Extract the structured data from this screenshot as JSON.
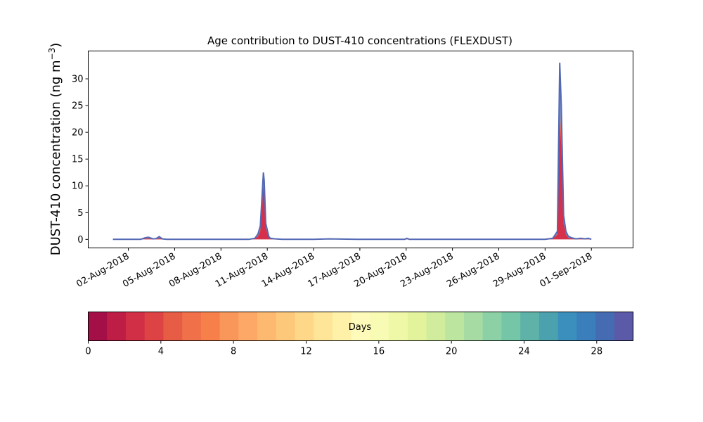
{
  "chart_data": {
    "type": "area",
    "title": "Age contribution to DUST-410 concentrations (FLEXDUST)",
    "ylabel_main": "DUST-410 concentration (ng m",
    "ylabel_sup": "−3",
    "ylabel_close": ")",
    "xlabel": "",
    "ylim": [
      -1.6,
      35.2
    ],
    "yticks": [
      0,
      5,
      10,
      15,
      20,
      25,
      30
    ],
    "xlim_day": [
      -1.6,
      33.7
    ],
    "xticks": [
      {
        "day": 1,
        "label": "02-Aug-2018"
      },
      {
        "day": 4,
        "label": "05-Aug-2018"
      },
      {
        "day": 7,
        "label": "08-Aug-2018"
      },
      {
        "day": 10,
        "label": "11-Aug-2018"
      },
      {
        "day": 13,
        "label": "14-Aug-2018"
      },
      {
        "day": 16,
        "label": "17-Aug-2018"
      },
      {
        "day": 19,
        "label": "20-Aug-2018"
      },
      {
        "day": 22,
        "label": "23-Aug-2018"
      },
      {
        "day": 25,
        "label": "26-Aug-2018"
      },
      {
        "day": 28,
        "label": "29-Aug-2018"
      },
      {
        "day": 31,
        "label": "01-Sep-2018"
      }
    ],
    "series_note_day0": "2018-08-01",
    "total": {
      "day": [
        0,
        1.8,
        2.1,
        2.3,
        2.6,
        2.8,
        3.0,
        3.2,
        3.5,
        4.0,
        6.0,
        7.0,
        8.0,
        8.8,
        9.2,
        9.4,
        9.55,
        9.6,
        9.75,
        9.8,
        9.9,
        10.1,
        10.2,
        10.5,
        11.0,
        12.0,
        13.0,
        14.0,
        16.0,
        18.0,
        18.9,
        19.05,
        19.2,
        20.0,
        22.0,
        24.0,
        26.0,
        28.0,
        28.5,
        28.8,
        28.95,
        29.05,
        29.2,
        29.35,
        29.5,
        29.7,
        30.0,
        30.3,
        30.6,
        30.8,
        31.0
      ],
      "value": [
        0,
        0,
        0.3,
        0.4,
        0.1,
        0.15,
        0.5,
        0.1,
        0,
        0,
        0,
        0,
        0,
        0,
        0.2,
        1.0,
        2.5,
        5.0,
        12.5,
        11.0,
        3.0,
        0.5,
        0.2,
        0.1,
        0,
        0,
        0,
        0.1,
        0,
        0,
        0,
        0.2,
        0,
        0,
        0,
        0,
        0,
        0,
        0.2,
        1.5,
        33.0,
        25.0,
        4.5,
        1.5,
        0.6,
        0.3,
        0.1,
        0.2,
        0.1,
        0.2,
        0
      ],
      "inner_fraction": [
        0,
        0,
        0.4,
        0.4,
        0.5,
        0.5,
        0.4,
        0.5,
        0,
        0,
        0,
        0,
        0,
        0,
        0.5,
        0.55,
        0.6,
        0.65,
        0.78,
        0.8,
        0.7,
        0.6,
        0.5,
        0.5,
        0,
        0,
        0,
        0.5,
        0,
        0,
        0,
        0.5,
        0,
        0,
        0,
        0,
        0,
        0,
        0.5,
        0.6,
        0.66,
        0.7,
        0.65,
        0.6,
        0.5,
        0.5,
        0.5,
        0.5,
        0.5,
        0.5,
        0
      ]
    },
    "colorbar": {
      "label": "Days",
      "range": [
        0,
        30
      ],
      "ticks": [
        0,
        4,
        8,
        12,
        16,
        20,
        24,
        28
      ],
      "colors": [
        "#a50f47",
        "#be1e46",
        "#d12f46",
        "#dd4245",
        "#e65c44",
        "#f07049",
        "#f7804a",
        "#f9975a",
        "#fda867",
        "#fdb96f",
        "#fec87b",
        "#fed788",
        "#fee597",
        "#fff1a8",
        "#fefbba",
        "#f8fbb3",
        "#eef8a6",
        "#e2f39c",
        "#d1ec9c",
        "#bce59f",
        "#a6dba3",
        "#8cd1a5",
        "#75c6a7",
        "#5eb2a8",
        "#4ba1ae",
        "#3b8fbd",
        "#3a7fbb",
        "#456cb3",
        "#5a5aa8"
      ]
    },
    "colors": {
      "outline": "#5369b4",
      "peak_inner": "#d6304a",
      "peak_mid": "#f46d43"
    }
  }
}
